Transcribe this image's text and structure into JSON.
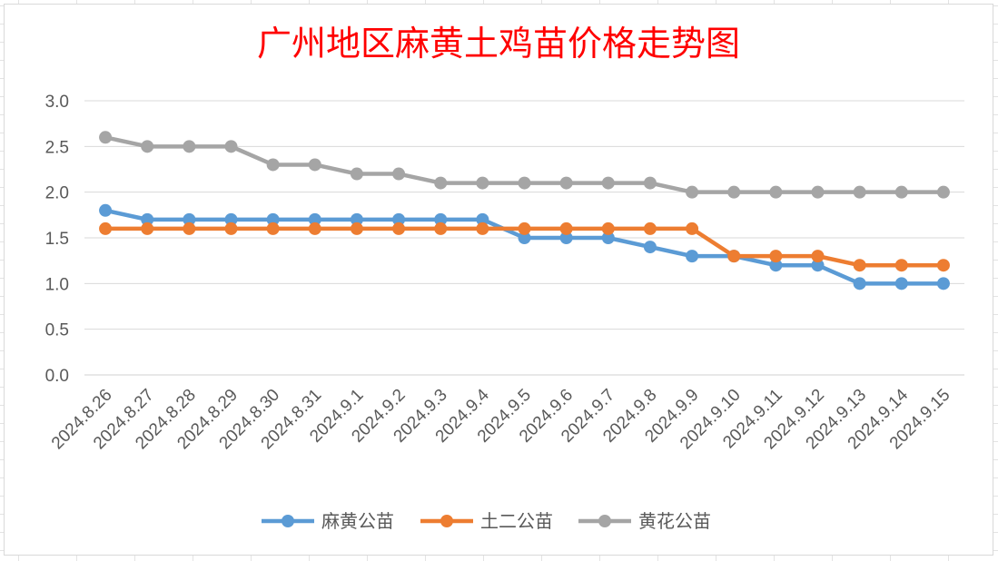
{
  "chart_data": {
    "type": "line",
    "title": "广州地区麻黄土鸡苗价格走势图",
    "xlabel": "",
    "ylabel": "",
    "ylim": [
      0,
      3.0
    ],
    "yticks": [
      "0.0",
      "0.5",
      "1.0",
      "1.5",
      "2.0",
      "2.5",
      "3.0"
    ],
    "grid": "horizontal",
    "legend_position": "bottom",
    "categories": [
      "2024.8.26",
      "2024.8.27",
      "2024.8.28",
      "2024.8.29",
      "2024.8.30",
      "2024.8.31",
      "2024.9.1",
      "2024.9.2",
      "2024.9.3",
      "2024.9.4",
      "2024.9.5",
      "2024.9.6",
      "2024.9.7",
      "2024.9.8",
      "2024.9.9",
      "2024.9.10",
      "2024.9.11",
      "2024.9.12",
      "2024.9.13",
      "2024.9.14",
      "2024.9.15"
    ],
    "series": [
      {
        "name": "麻黄公苗",
        "color": "#5b9bd5",
        "values": [
          1.8,
          1.7,
          1.7,
          1.7,
          1.7,
          1.7,
          1.7,
          1.7,
          1.7,
          1.7,
          1.5,
          1.5,
          1.5,
          1.4,
          1.3,
          1.3,
          1.2,
          1.2,
          1.0,
          1.0,
          1.0
        ]
      },
      {
        "name": "土二公苗",
        "color": "#ed7d31",
        "values": [
          1.6,
          1.6,
          1.6,
          1.6,
          1.6,
          1.6,
          1.6,
          1.6,
          1.6,
          1.6,
          1.6,
          1.6,
          1.6,
          1.6,
          1.6,
          1.3,
          1.3,
          1.3,
          1.2,
          1.2,
          1.2
        ]
      },
      {
        "name": "黄花公苗",
        "color": "#a5a5a5",
        "values": [
          2.6,
          2.5,
          2.5,
          2.5,
          2.3,
          2.3,
          2.2,
          2.2,
          2.1,
          2.1,
          2.1,
          2.1,
          2.1,
          2.1,
          2.0,
          2.0,
          2.0,
          2.0,
          2.0,
          2.0,
          2.0
        ]
      }
    ]
  }
}
